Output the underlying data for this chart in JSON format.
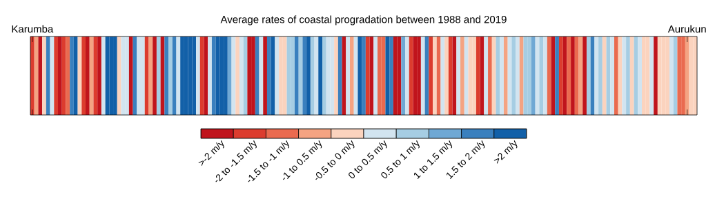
{
  "chart_data": {
    "type": "heatmap",
    "title": "Average rates of coastal progradation between 1988 and 2019",
    "categories": [
      "Karumba",
      null,
      null,
      null,
      null,
      null,
      null,
      null,
      null,
      null,
      null,
      null,
      null,
      null,
      null,
      null,
      null,
      null,
      null,
      null,
      null,
      null,
      null,
      null,
      null,
      null,
      null,
      null,
      null,
      null,
      null,
      null,
      null,
      null,
      null,
      null,
      null,
      null,
      null,
      null,
      null,
      null,
      null,
      null,
      null,
      null,
      null,
      null,
      null,
      null,
      null,
      null,
      null,
      null,
      null,
      null,
      null,
      null,
      null,
      null,
      null,
      null,
      null,
      null,
      null,
      null,
      null,
      null,
      null,
      null,
      null,
      null,
      null,
      null,
      null,
      null,
      null,
      null,
      null,
      null,
      null,
      null,
      null,
      null,
      null,
      null,
      null,
      null,
      null,
      null,
      null,
      null,
      null,
      null,
      null,
      null,
      null,
      null,
      null,
      null,
      null,
      null,
      null,
      null,
      null,
      null,
      null,
      null,
      null,
      null,
      null,
      null,
      null,
      null,
      null,
      null,
      null,
      null,
      null,
      null,
      null,
      null,
      null,
      null,
      null,
      null,
      null,
      null,
      null,
      null,
      null,
      null,
      null,
      null,
      null,
      null,
      null,
      null,
      null,
      null,
      null,
      null,
      null,
      null,
      null,
      null,
      null,
      null,
      null,
      null,
      null,
      null,
      null,
      null,
      null,
      null,
      null,
      null,
      null,
      null,
      null,
      null,
      null,
      null,
      null,
      null,
      "Aurukun",
      null,
      null
    ],
    "y_categories": [
      null
    ],
    "cells": [
      [
        -1.75,
        -0.75,
        -2.25,
        -0.25,
        1.75,
        0.25,
        -1.75,
        -2.25,
        -1.75,
        -1.25,
        1.75,
        2.25,
        -0.25,
        -1.75,
        -2.25,
        -0.75,
        -1.75,
        -2.25,
        0.25,
        2.25,
        2.25,
        2.25,
        -0.25,
        0.25,
        0.25,
        -2.25,
        1.75,
        0.25,
        0.25,
        -1.75,
        -0.75,
        -2.25,
        0.75,
        -2.25,
        1.75,
        0.75,
        1.75,
        0.25,
        2.25,
        2.25,
        2.25,
        2.25,
        0.25,
        -1.75,
        -2.25,
        0.25,
        1.75,
        2.25,
        2.25,
        2.25,
        1.25,
        0.25,
        -0.25,
        0.25,
        0.75,
        -2.25,
        -2.25,
        1.75,
        0.25,
        -2.25,
        1.75,
        2.25,
        0.25,
        -0.25,
        -0.25,
        0.75,
        0.75,
        1.75,
        0.75,
        1.75,
        2.25,
        0.75,
        0.25,
        2.25,
        0.75,
        0.25,
        0.25,
        -0.25,
        1.75,
        -2.25,
        0.25,
        -0.75,
        0.25,
        2.25,
        1.75,
        -1.75,
        -2.25,
        0.25,
        -1.25,
        -1.25,
        2.25,
        1.75,
        -2.25,
        -2.25,
        1.25,
        0.25,
        -1.75,
        -2.25,
        -2.25,
        0.25,
        1.75,
        -1.75,
        -0.25,
        -1.25,
        0.25,
        -0.25,
        -1.75,
        -2.25,
        0.25,
        -0.75,
        0.25,
        -0.25,
        -0.25,
        -1.75,
        -2.25,
        0.25,
        -1.25,
        -0.25,
        0.75,
        0.25,
        -0.75,
        0.25,
        0.75,
        0.25,
        -0.75,
        0.75,
        0.75,
        1.25,
        0.25,
        0.75,
        0.25,
        -1.25,
        -2.25,
        1.75,
        -1.75,
        -2.25,
        -1.25,
        -2.25,
        -1.25,
        -0.75,
        -2.25,
        0.75,
        1.75,
        0.25,
        0.75,
        -0.25,
        0.75,
        0.25,
        -1.25,
        -0.25,
        0.25,
        0.75,
        -0.25,
        0.75,
        0.25,
        -0.25,
        -0.25,
        0.25,
        -2.25,
        -0.25,
        -0.25,
        -0.25,
        0.25,
        0.75,
        -1.25,
        -1.25,
        -0.75,
        -0.25,
        -0.25
      ]
    ],
    "clim": [
      -2.5,
      2.5
    ],
    "cticks": [
      {
        "value": -2.25,
        "label": ">-2 m/y"
      },
      {
        "value": -1.75,
        "label": "-2 to -1.5 m/y"
      },
      {
        "value": -1.25,
        "label": "-1.5 to -1 m/y"
      },
      {
        "value": -0.75,
        "label": "-1 to 0.5 m/y"
      },
      {
        "value": -0.25,
        "label": "-0.5 to 0 m/y"
      },
      {
        "value": 0.25,
        "label": "0 to 0.5 m/y"
      },
      {
        "value": 0.75,
        "label": "0.5 to 1 m/y"
      },
      {
        "value": 1.25,
        "label": "1 to 1.5 m/y"
      },
      {
        "value": 1.75,
        "label": "1.5 to 2 m/y"
      },
      {
        "value": 2.25,
        "label": ">2 m/y"
      }
    ]
  }
}
